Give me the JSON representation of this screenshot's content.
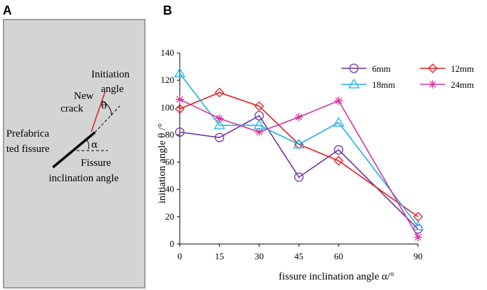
{
  "panel_a": {
    "letter": "A",
    "initiation_angle_label": [
      "Initiation",
      "angle"
    ],
    "new_crack_label": [
      "New",
      "crack"
    ],
    "theta_symbol": "θ",
    "prefabricated_label": [
      "Prefabrica",
      "ted fissure"
    ],
    "alpha_symbol": "α",
    "inclination_label": [
      "Fissure",
      "inclination angle"
    ]
  },
  "chart_data": {
    "type": "line",
    "panel_letter": "B",
    "title": "",
    "xlabel": "fissure inclination angle α/°",
    "ylabel": "initiation angle θ /°",
    "x": [
      0,
      15,
      30,
      45,
      60,
      90
    ],
    "x_ticks": [
      "0",
      "15",
      "30",
      "45",
      "60",
      "90"
    ],
    "ylim": [
      0,
      140
    ],
    "y_ticks": [
      "0",
      "20",
      "40",
      "60",
      "80",
      "100",
      "120",
      "140"
    ],
    "grid": false,
    "legend_position": "top-right",
    "series": [
      {
        "name": "6mm",
        "color": "#7030A0",
        "marker": "circle",
        "values": [
          82,
          78,
          94,
          49,
          69,
          11
        ]
      },
      {
        "name": "12mm",
        "color": "#E41A1C",
        "marker": "diamond",
        "values": [
          99,
          111,
          101,
          73,
          61,
          20
        ]
      },
      {
        "name": "18mm",
        "color": "#19B2E6",
        "marker": "triangle",
        "values": [
          125,
          87,
          87,
          73,
          89,
          13
        ]
      },
      {
        "name": "24mm",
        "color": "#D6339F",
        "marker": "asterisk",
        "values": [
          106,
          92,
          82,
          93,
          105,
          5
        ]
      }
    ]
  }
}
